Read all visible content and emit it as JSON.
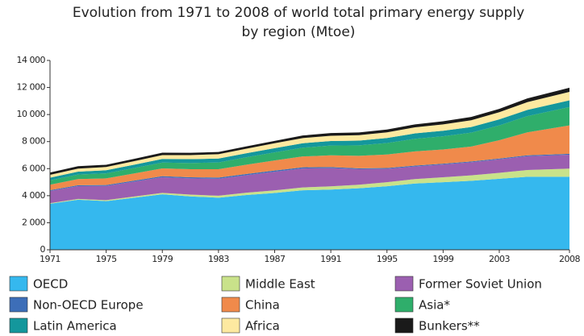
{
  "chart_data": {
    "type": "stacked-area",
    "title": [
      "Evolution from 1971 to 2008 of world total primary energy supply",
      "by region (Mtoe)"
    ],
    "x": [
      1971,
      1973,
      1975,
      1977,
      1979,
      1981,
      1983,
      1985,
      1987,
      1989,
      1991,
      1993,
      1995,
      1997,
      1999,
      2001,
      2003,
      2005,
      2008
    ],
    "xlim": [
      1971,
      2008
    ],
    "xticks": [
      1971,
      1975,
      1979,
      1983,
      1987,
      1991,
      1995,
      1999,
      2003,
      2008
    ],
    "ylim": [
      0,
      14000
    ],
    "yticks": [
      0,
      {
        "value": 2000,
        "label": "2 000"
      },
      {
        "value": 4000,
        "label": "4 000"
      },
      {
        "value": 6000,
        "label": "6 000"
      },
      {
        "value": 8000,
        "label": "8 000"
      },
      {
        "value": 10000,
        "label": "10 000"
      },
      {
        "value": 12000,
        "label": "12 000"
      },
      {
        "value": 14000,
        "label": "14 000"
      }
    ],
    "grid": false,
    "series": [
      {
        "name": "OECD",
        "color": "#35b8ee",
        "values": [
          3400,
          3700,
          3600,
          3850,
          4100,
          3950,
          3850,
          4050,
          4200,
          4400,
          4450,
          4550,
          4700,
          4900,
          5000,
          5100,
          5250,
          5400,
          5400
        ]
      },
      {
        "name": "Middle East",
        "color": "#c9e28a",
        "values": [
          50,
          60,
          70,
          90,
          110,
          130,
          150,
          170,
          190,
          210,
          240,
          260,
          300,
          330,
          360,
          400,
          440,
          500,
          600
        ]
      },
      {
        "name": "Former Soviet Union",
        "color": "#9b5fb0",
        "values": [
          900,
          950,
          1050,
          1100,
          1150,
          1200,
          1250,
          1300,
          1380,
          1400,
          1350,
          1150,
          980,
          930,
          950,
          970,
          1000,
          1020,
          1030
        ]
      },
      {
        "name": "Non-OECD Europe",
        "color": "#3d6eb8",
        "values": [
          60,
          65,
          70,
          75,
          80,
          85,
          88,
          90,
          92,
          90,
          75,
          65,
          65,
          65,
          60,
          60,
          60,
          65,
          70
        ]
      },
      {
        "name": "China",
        "color": "#f08a4b",
        "values": [
          400,
          450,
          490,
          530,
          580,
          590,
          620,
          680,
          740,
          800,
          870,
          920,
          1000,
          1050,
          1050,
          1100,
          1350,
          1700,
          2100
        ]
      },
      {
        "name": "Asia*",
        "color": "#2fae6b",
        "values": [
          320,
          340,
          370,
          400,
          430,
          460,
          500,
          550,
          600,
          650,
          720,
          780,
          850,
          930,
          970,
          1030,
          1100,
          1200,
          1350
        ]
      },
      {
        "name": "Latin America",
        "color": "#14979c",
        "values": [
          200,
          215,
          230,
          250,
          270,
          285,
          290,
          300,
          315,
          330,
          335,
          350,
          370,
          400,
          410,
          420,
          440,
          460,
          500
        ]
      },
      {
        "name": "Africa",
        "color": "#fde9a0",
        "values": [
          210,
          220,
          240,
          260,
          280,
          300,
          320,
          340,
          360,
          380,
          390,
          400,
          420,
          450,
          470,
          500,
          530,
          570,
          630
        ]
      },
      {
        "name": "Bunkers**",
        "color": "#1a1a1a",
        "values": [
          170,
          180,
          165,
          170,
          180,
          170,
          160,
          165,
          175,
          190,
          200,
          200,
          210,
          220,
          230,
          240,
          250,
          280,
          300
        ]
      }
    ]
  }
}
